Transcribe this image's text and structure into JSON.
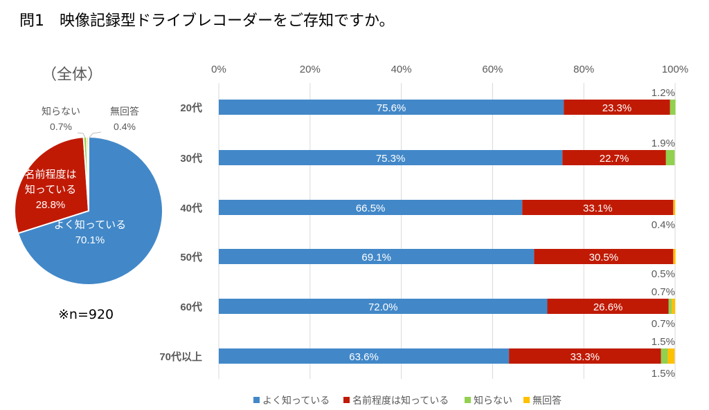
{
  "title": "問1　映像記録型ドライブレコーダーをご存知ですか。",
  "pie_title": "（全体）",
  "note": "※n=920",
  "colors": {
    "よく知っている": "#4288C8",
    "名前程度は知っている": "#C01A05",
    "知らない": "#92D050",
    "無回答": "#FFC000"
  },
  "chart_data": [
    {
      "type": "pie",
      "title": "（全体）",
      "slices": [
        {
          "label": "よく知っている",
          "value": 70.1,
          "display": "70.1%"
        },
        {
          "label": "名前程度は知っている",
          "label_lines": [
            "名前程度は",
            "知っている"
          ],
          "value": 28.8,
          "display": "28.8%"
        },
        {
          "label": "知らない",
          "value": 0.7,
          "display": "0.7%"
        },
        {
          "label": "無回答",
          "value": 0.4,
          "display": "0.4%"
        }
      ]
    },
    {
      "type": "bar",
      "orientation": "horizontal-stacked-100",
      "categories": [
        "20代",
        "30代",
        "40代",
        "50代",
        "60代",
        "70代以上"
      ],
      "xlim": [
        0,
        100
      ],
      "xticks": [
        "0%",
        "20%",
        "40%",
        "60%",
        "80%",
        "100%"
      ],
      "grid": true,
      "legend": "bottom",
      "series": [
        {
          "name": "よく知っている",
          "values": [
            75.6,
            75.3,
            66.5,
            69.1,
            72.0,
            63.6
          ]
        },
        {
          "name": "名前程度は知っている",
          "values": [
            23.3,
            22.7,
            33.1,
            30.5,
            26.6,
            33.3
          ]
        },
        {
          "name": "知らない",
          "values": [
            1.2,
            1.9,
            0,
            0,
            0.7,
            1.5
          ]
        },
        {
          "name": "無回答",
          "values": [
            0,
            0,
            0.4,
            0.5,
            0.7,
            1.5
          ]
        }
      ]
    }
  ]
}
